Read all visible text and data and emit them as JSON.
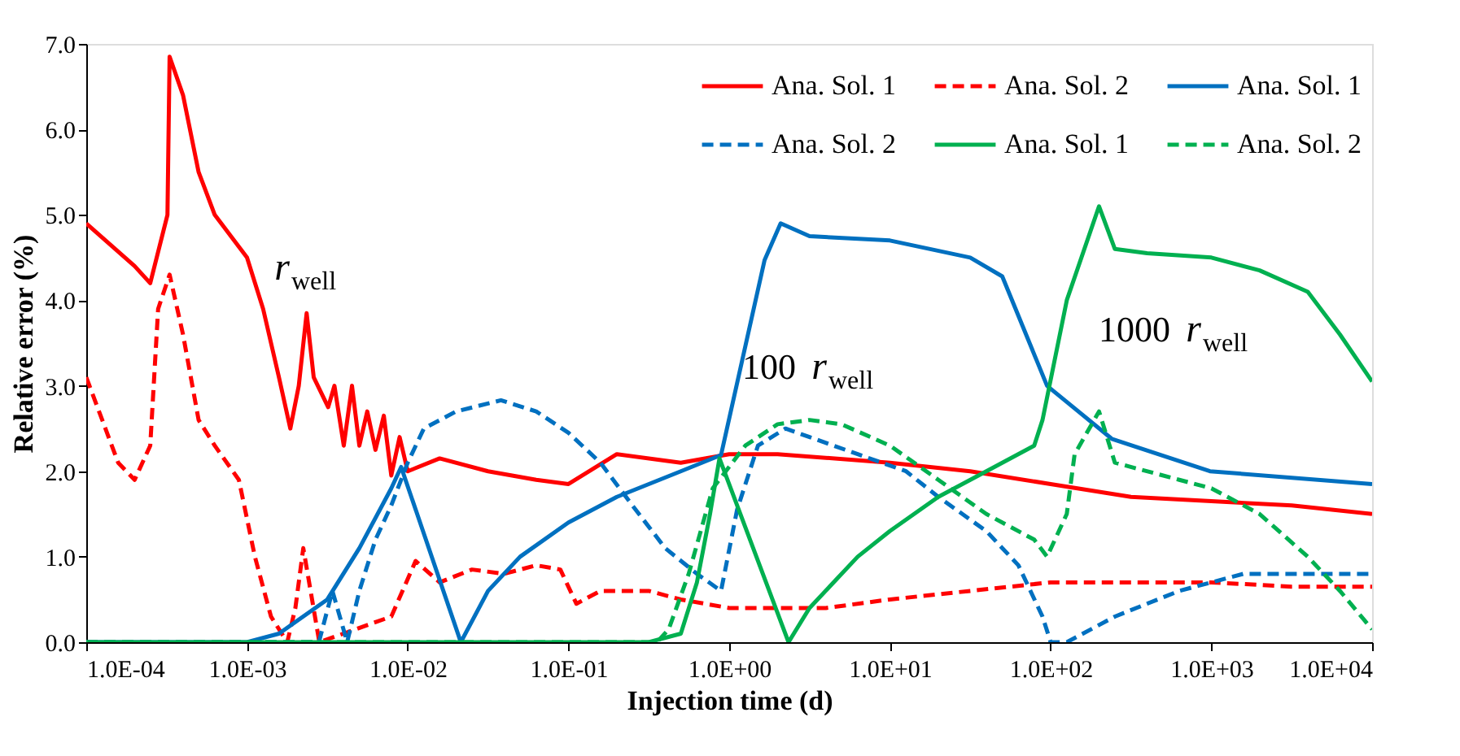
{
  "chart_data": {
    "type": "line",
    "xlabel": "Injection time (d)",
    "ylabel": "Relative error (%)",
    "log": "x",
    "grid": false,
    "legend": "top right",
    "xlim": [
      0.0001,
      10000
    ],
    "ylim": [
      0,
      7
    ],
    "xticks": [
      {
        "value": 0.0001,
        "label": "1.0E-04"
      },
      {
        "value": 0.001,
        "label": "1.0E-03"
      },
      {
        "value": 0.01,
        "label": "1.0E-02"
      },
      {
        "value": 0.1,
        "label": "1.0E-01"
      },
      {
        "value": 1,
        "label": "1.0E+00"
      },
      {
        "value": 10,
        "label": "1.0E+01"
      },
      {
        "value": 100,
        "label": "1.0E+02"
      },
      {
        "value": 1000,
        "label": "1.0E+03"
      },
      {
        "value": 10000,
        "label": "1.0E+04"
      }
    ],
    "yticks": [
      {
        "value": 0,
        "label": "0.0"
      },
      {
        "value": 1,
        "label": "1.0"
      },
      {
        "value": 2,
        "label": "2.0"
      },
      {
        "value": 3,
        "label": "3.0"
      },
      {
        "value": 4,
        "label": "4.0"
      },
      {
        "value": 5,
        "label": "5.0"
      },
      {
        "value": 6,
        "label": "6.0"
      },
      {
        "value": 7,
        "label": "7.0"
      }
    ],
    "annotations": [
      "r$_{well}$",
      "100 r$_{well}$",
      "1000 r$_{well}$"
    ],
    "series": [
      {
        "name": "Ana. Sol. 1",
        "color": "#ff0000",
        "line_style": "solid",
        "x": [
          0.0001,
          0.0002,
          0.00025,
          0.00032,
          0.00033,
          0.0004,
          0.0005,
          0.00063,
          0.001,
          0.00126,
          0.00158,
          0.00186,
          0.0021,
          0.00235,
          0.0026,
          0.0032,
          0.0035,
          0.004,
          0.0045,
          0.005,
          0.0056,
          0.0063,
          0.0071,
          0.0079,
          0.0089,
          0.01,
          0.0158,
          0.0316,
          0.063,
          0.1,
          0.2,
          0.5,
          1,
          2,
          10,
          31.6,
          100,
          316,
          1000,
          3162,
          10000
        ],
        "values": [
          4.9,
          4.4,
          4.2,
          5.0,
          6.85,
          6.4,
          5.5,
          5.0,
          4.5,
          3.9,
          3.1,
          2.5,
          3.0,
          3.85,
          3.1,
          2.75,
          3.0,
          2.3,
          3.0,
          2.3,
          2.7,
          2.25,
          2.65,
          1.95,
          2.4,
          2.0,
          2.15,
          2.0,
          1.9,
          1.85,
          2.2,
          2.1,
          2.2,
          2.2,
          2.1,
          2.0,
          1.85,
          1.7,
          1.65,
          1.6,
          1.5
        ]
      },
      {
        "name": "Ana. Sol. 2",
        "color": "#ff0000",
        "line_style": "dashed",
        "x": [
          0.0001,
          0.000158,
          0.0002,
          0.00025,
          0.00028,
          0.00033,
          0.0004,
          0.0005,
          0.00063,
          0.00089,
          0.00112,
          0.00141,
          0.00178,
          0.002,
          0.00224,
          0.00282,
          0.0079,
          0.0112,
          0.0158,
          0.0251,
          0.0398,
          0.063,
          0.089,
          0.112,
          0.158,
          0.316,
          0.5,
          1,
          2,
          4,
          10,
          31.6,
          100,
          316,
          1000,
          3162,
          10000
        ],
        "values": [
          3.1,
          2.1,
          1.9,
          2.3,
          3.9,
          4.3,
          3.6,
          2.6,
          2.3,
          1.9,
          1.0,
          0.3,
          0.0,
          0.4,
          1.1,
          0.0,
          0.3,
          0.95,
          0.7,
          0.85,
          0.8,
          0.9,
          0.85,
          0.45,
          0.6,
          0.6,
          0.5,
          0.4,
          0.4,
          0.4,
          0.5,
          0.6,
          0.7,
          0.7,
          0.7,
          0.65,
          0.65
        ]
      },
      {
        "name": "Ana. Sol. 1",
        "color": "#0070c0",
        "line_style": "solid",
        "x": [
          0.0001,
          0.001,
          0.00158,
          0.00316,
          0.005,
          0.0079,
          0.0091,
          0.0214,
          0.0316,
          0.05,
          0.1,
          0.2,
          0.5,
          0.89,
          1.66,
          2.09,
          3.16,
          10,
          31.6,
          50,
          95,
          240,
          980,
          10000
        ],
        "values": [
          0,
          0,
          0.1,
          0.5,
          1.1,
          1.8,
          2.05,
          0,
          0.6,
          1.0,
          1.4,
          1.7,
          2.0,
          2.19,
          4.47,
          4.9,
          4.75,
          4.7,
          4.5,
          4.28,
          3.0,
          2.38,
          2.0,
          1.85
        ]
      },
      {
        "name": "Ana. Sol. 2",
        "color": "#0070c0",
        "line_style": "dashed",
        "x": [
          0.0001,
          0.0028,
          0.0034,
          0.0042,
          0.005,
          0.0063,
          0.0079,
          0.01,
          0.0126,
          0.02,
          0.038,
          0.063,
          0.1,
          0.158,
          0.25,
          0.4,
          0.63,
          0.89,
          1.12,
          1.51,
          2.24,
          3.16,
          6.3,
          12.6,
          20,
          39.8,
          63,
          89,
          100,
          126,
          251,
          631,
          1585,
          10000
        ],
        "values": [
          0,
          0,
          0.6,
          0,
          0.6,
          1.2,
          1.6,
          2.1,
          2.5,
          2.7,
          2.83,
          2.7,
          2.45,
          2.1,
          1.6,
          1.1,
          0.8,
          0.6,
          1.55,
          2.3,
          2.5,
          2.4,
          2.2,
          2.0,
          1.7,
          1.3,
          0.9,
          0.3,
          0.0,
          0.0,
          0.3,
          0.6,
          0.8,
          0.8
        ]
      },
      {
        "name": "Ana. Sol. 1",
        "color": "#00b050",
        "line_style": "solid",
        "x": [
          0.0001,
          0.316,
          0.5,
          0.63,
          0.76,
          0.87,
          2.34,
          3.16,
          6.3,
          10,
          20,
          39.8,
          79,
          89,
          126,
          200,
          251,
          398,
          1000,
          1995,
          3981,
          6310,
          10000
        ],
        "values": [
          0,
          0,
          0.1,
          0.7,
          1.5,
          2.15,
          0,
          0.4,
          1.0,
          1.3,
          1.7,
          2.0,
          2.3,
          2.6,
          4.0,
          5.1,
          4.6,
          4.55,
          4.5,
          4.35,
          4.1,
          3.6,
          3.05
        ]
      },
      {
        "name": "Ana. Sol. 2",
        "color": "#00b050",
        "line_style": "dashed",
        "x": [
          0.0001,
          0.355,
          0.42,
          0.56,
          0.79,
          1.26,
          2,
          3.16,
          5,
          10,
          20,
          39.8,
          79,
          95,
          126,
          141,
          200,
          251,
          631,
          1000,
          1995,
          3981,
          6310,
          10000
        ],
        "values": [
          0,
          0,
          0.15,
          0.8,
          1.8,
          2.3,
          2.55,
          2.6,
          2.55,
          2.3,
          1.9,
          1.5,
          1.2,
          1.0,
          1.5,
          2.2,
          2.7,
          2.1,
          1.9,
          1.8,
          1.5,
          1.0,
          0.6,
          0.15
        ]
      }
    ]
  }
}
